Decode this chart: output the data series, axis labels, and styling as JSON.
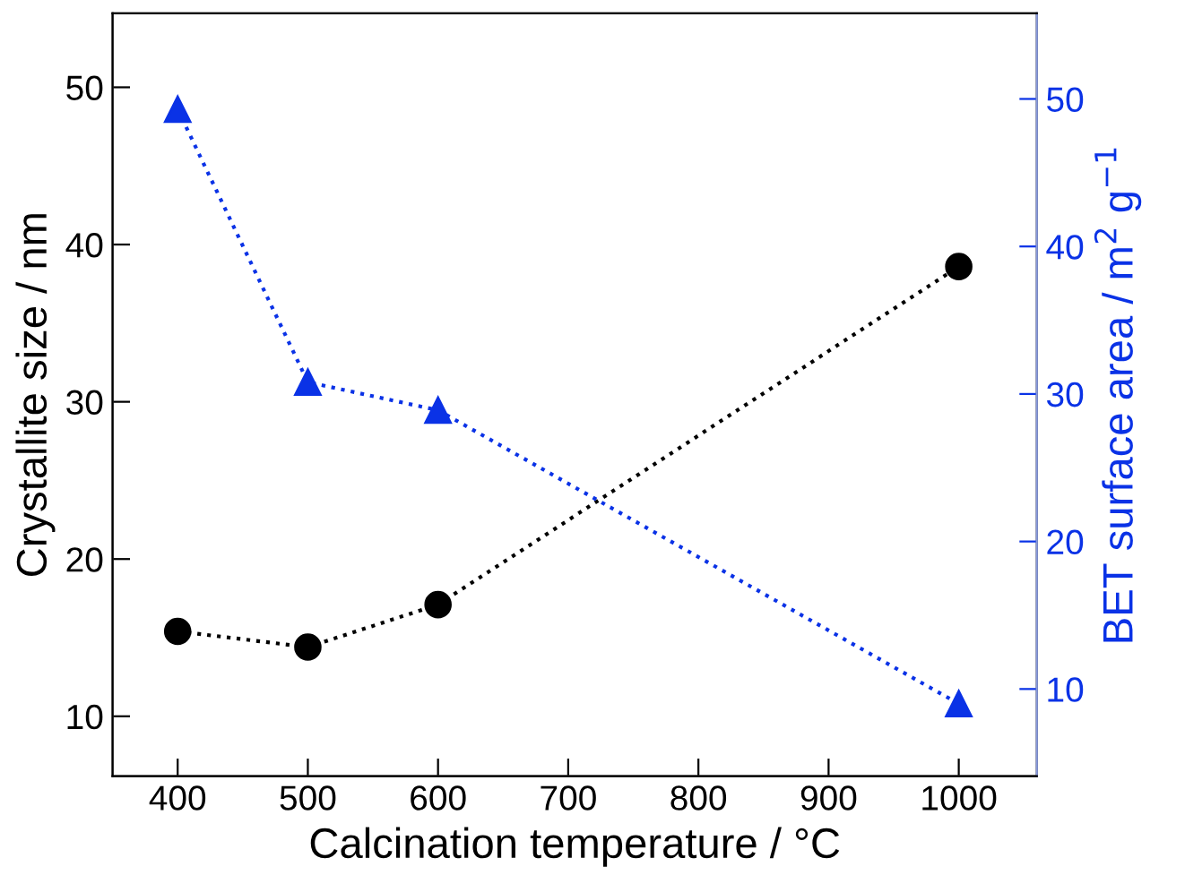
{
  "chart_data": {
    "type": "line",
    "xlabel": "Calcination temperature / °C",
    "ylabel": "Crystallite size / nm",
    "y2label": "BET surface area / m$^{2}$ g$^{−1}$",
    "x": [
      400,
      500,
      600,
      1000
    ],
    "series": [
      {
        "color": "#000000",
        "marker": "circle",
        "line_style": "dotted",
        "values": [
          15.4,
          14.4,
          17.1,
          38.6
        ]
      },
      {
        "color": "#0a32e6",
        "marker": "triangle",
        "line_style": "dotted",
        "axis": "y2",
        "values": [
          49.3,
          30.8,
          28.9,
          9.0
        ]
      }
    ],
    "xlim": [
      350,
      1060
    ],
    "xticks": [
      400,
      500,
      600,
      700,
      800,
      900,
      1000
    ],
    "ylim": [
      6.2,
      54.7
    ],
    "yticks": [
      10,
      20,
      30,
      40,
      50
    ],
    "y2lim": [
      4.1,
      55.8
    ],
    "y2ticks": [
      10,
      20,
      30,
      40,
      50
    ],
    "grid": false,
    "legend": false
  }
}
